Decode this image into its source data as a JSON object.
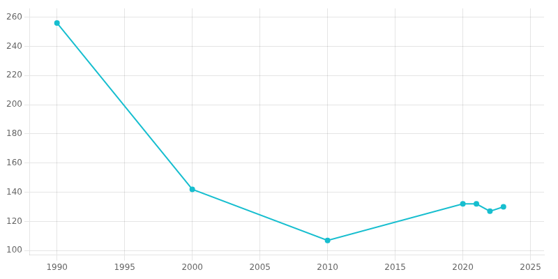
{
  "chart_data": {
    "type": "line",
    "x": [
      1990,
      2000,
      2010,
      2020,
      2021,
      2022,
      2023
    ],
    "values": [
      256,
      142,
      107,
      132,
      132,
      127,
      130
    ],
    "color": "#17BECF",
    "marker": "circle",
    "xlim": [
      1988,
      2026
    ],
    "ylim": [
      97,
      266
    ],
    "xticks": [
      1990,
      1995,
      2000,
      2005,
      2010,
      2015,
      2020,
      2025
    ],
    "yticks": [
      100,
      120,
      140,
      160,
      180,
      200,
      220,
      240,
      260
    ],
    "grid": true
  }
}
